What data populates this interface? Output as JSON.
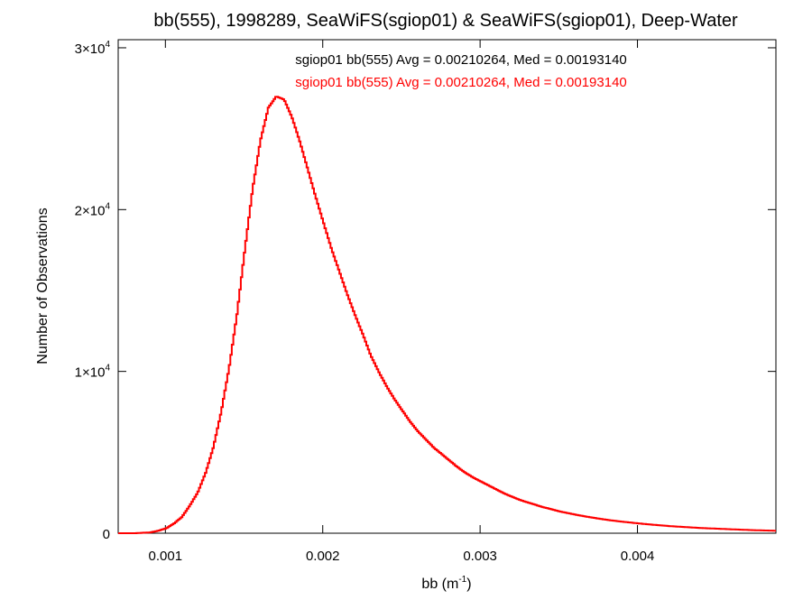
{
  "chart_data": {
    "type": "histogram",
    "title": "bb(555), 1998289, SeaWiFS(sgiop01) & SeaWiFS(sgiop01), Deep-Water",
    "xlabel_main": "bb (m",
    "xlabel_sup": "-1",
    "xlabel_close": ")",
    "ylabel": "Number of Observations",
    "xlim": [
      0.0007,
      0.00488
    ],
    "ylim": [
      0,
      30500
    ],
    "x_ticks": [
      {
        "value": 0.001,
        "label": "0.001"
      },
      {
        "value": 0.002,
        "label": "0.002"
      },
      {
        "value": 0.003,
        "label": "0.003"
      },
      {
        "value": 0.004,
        "label": "0.004"
      }
    ],
    "y_ticks": [
      {
        "value": 0,
        "base": "0",
        "exp": ""
      },
      {
        "value": 10000,
        "base": "1×10",
        "exp": "4"
      },
      {
        "value": 20000,
        "base": "2×10",
        "exp": "4"
      },
      {
        "value": 30000,
        "base": "3×10",
        "exp": "4"
      }
    ],
    "annotations": [
      {
        "text": "sgiop01 bb(555) Avg = 0.00210264, Med = 0.00193140",
        "color": "#000000"
      },
      {
        "text": "sgiop01 bb(555) Avg = 0.00210264, Med = 0.00193140",
        "color": "#ff0000"
      }
    ],
    "series": [
      {
        "color": "#ff0000",
        "points": [
          [
            0.0007,
            0
          ],
          [
            0.0008,
            0
          ],
          [
            0.0009,
            50
          ],
          [
            0.00095,
            150
          ],
          [
            0.001,
            300
          ],
          [
            0.00105,
            600
          ],
          [
            0.0011,
            1000
          ],
          [
            0.00115,
            1700
          ],
          [
            0.0012,
            2500
          ],
          [
            0.00125,
            3700
          ],
          [
            0.0013,
            5300
          ],
          [
            0.00135,
            7500
          ],
          [
            0.0014,
            10200
          ],
          [
            0.00145,
            13500
          ],
          [
            0.0015,
            17500
          ],
          [
            0.00155,
            21300
          ],
          [
            0.0016,
            24300
          ],
          [
            0.00165,
            26300
          ],
          [
            0.0017,
            27000
          ],
          [
            0.00175,
            26800
          ],
          [
            0.0018,
            25700
          ],
          [
            0.00185,
            24200
          ],
          [
            0.0019,
            22500
          ],
          [
            0.00195,
            20800
          ],
          [
            0.002,
            19200
          ],
          [
            0.00205,
            17600
          ],
          [
            0.0021,
            16200
          ],
          [
            0.00215,
            14800
          ],
          [
            0.0022,
            13500
          ],
          [
            0.00225,
            12300
          ],
          [
            0.0023,
            11000
          ],
          [
            0.00235,
            10000
          ],
          [
            0.0024,
            9100
          ],
          [
            0.00245,
            8300
          ],
          [
            0.0025,
            7600
          ],
          [
            0.00255,
            6900
          ],
          [
            0.0026,
            6300
          ],
          [
            0.00265,
            5800
          ],
          [
            0.0027,
            5300
          ],
          [
            0.00275,
            4900
          ],
          [
            0.0028,
            4500
          ],
          [
            0.00285,
            4100
          ],
          [
            0.0029,
            3750
          ],
          [
            0.00295,
            3450
          ],
          [
            0.003,
            3200
          ],
          [
            0.00305,
            2950
          ],
          [
            0.0031,
            2700
          ],
          [
            0.00315,
            2450
          ],
          [
            0.0032,
            2250
          ],
          [
            0.00325,
            2050
          ],
          [
            0.0033,
            1900
          ],
          [
            0.00335,
            1750
          ],
          [
            0.0034,
            1600
          ],
          [
            0.00345,
            1480
          ],
          [
            0.0035,
            1350
          ],
          [
            0.00355,
            1250
          ],
          [
            0.0036,
            1150
          ],
          [
            0.00365,
            1060
          ],
          [
            0.0037,
            980
          ],
          [
            0.00375,
            900
          ],
          [
            0.0038,
            830
          ],
          [
            0.00385,
            770
          ],
          [
            0.0039,
            710
          ],
          [
            0.00395,
            660
          ],
          [
            0.004,
            610
          ],
          [
            0.00405,
            560
          ],
          [
            0.0041,
            520
          ],
          [
            0.00415,
            480
          ],
          [
            0.0042,
            440
          ],
          [
            0.00425,
            410
          ],
          [
            0.0043,
            380
          ],
          [
            0.00435,
            350
          ],
          [
            0.0044,
            320
          ],
          [
            0.00445,
            300
          ],
          [
            0.0045,
            280
          ],
          [
            0.00455,
            260
          ],
          [
            0.0046,
            240
          ],
          [
            0.00465,
            220
          ],
          [
            0.0047,
            200
          ],
          [
            0.00475,
            185
          ],
          [
            0.0048,
            170
          ],
          [
            0.00485,
            160
          ],
          [
            0.00488,
            155
          ]
        ]
      }
    ]
  }
}
